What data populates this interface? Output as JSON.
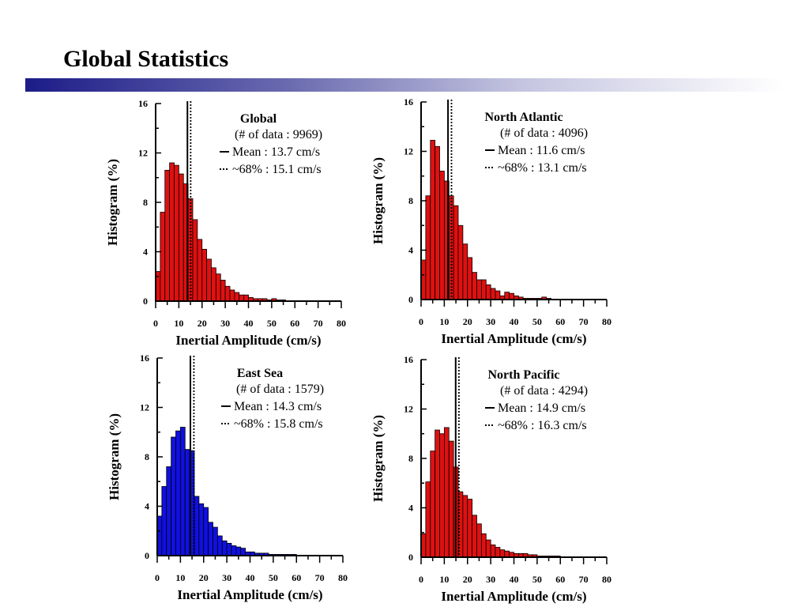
{
  "title": "Global Statistics",
  "colors": {
    "red": "#e01010",
    "blue": "#1010e0"
  },
  "chart_data": [
    {
      "type": "bar",
      "title": "Global",
      "n_data_label": "(# of data : 9969)",
      "mean_label": "Mean : 13.7 cm/s",
      "pct_label": "~68% : 15.1 cm/s",
      "mean": 13.7,
      "pct68": 15.1,
      "bar_color": "red",
      "xlabel": "Inertial Amplitude (cm/s)",
      "ylabel": "Histogram (%)",
      "xlim": [
        0,
        80
      ],
      "ylim": [
        0,
        16
      ],
      "xticks": [
        0,
        10,
        20,
        30,
        40,
        50,
        60,
        70,
        80
      ],
      "yticks": [
        0,
        4,
        8,
        12,
        16
      ],
      "bin_width": 2,
      "values": [
        2.4,
        7.2,
        10.6,
        11.2,
        11.0,
        10.3,
        9.5,
        8.3,
        6.6,
        5.0,
        4.2,
        3.4,
        2.7,
        2.2,
        1.7,
        1.2,
        0.9,
        0.7,
        0.5,
        0.5,
        0.3,
        0.2,
        0.2,
        0.2,
        0.1,
        0.2,
        0.1,
        0.1,
        0.0,
        0.0,
        0.0,
        0.0,
        0.0,
        0.0,
        0.0,
        0.0,
        0.0,
        0.0,
        0.0,
        0.0
      ]
    },
    {
      "type": "bar",
      "title": "North Atlantic",
      "n_data_label": "(# of data : 4096)",
      "mean_label": "Mean : 11.6 cm/s",
      "pct_label": "~68% : 13.1 cm/s",
      "mean": 11.6,
      "pct68": 13.1,
      "bar_color": "red",
      "xlabel": "Inertial Amplitude (cm/s)",
      "ylabel": "Histogram (%)",
      "xlim": [
        0,
        80
      ],
      "ylim": [
        0,
        16
      ],
      "xticks": [
        0,
        10,
        20,
        30,
        40,
        50,
        60,
        70,
        80
      ],
      "yticks": [
        0,
        4,
        8,
        12,
        16
      ],
      "bin_width": 2,
      "values": [
        3.2,
        8.4,
        12.9,
        12.4,
        10.4,
        9.6,
        8.4,
        7.6,
        6.0,
        4.5,
        3.4,
        2.2,
        1.6,
        1.6,
        1.2,
        0.9,
        0.7,
        0.3,
        0.6,
        0.5,
        0.3,
        0.2,
        0.1,
        0.1,
        0.1,
        0.1,
        0.2,
        0.1,
        0.0,
        0.0,
        0.0,
        0.0,
        0.0,
        0.0,
        0.0,
        0.0,
        0.0,
        0.0,
        0.0,
        0.0
      ]
    },
    {
      "type": "bar",
      "title": "East Sea",
      "n_data_label": "(# of data : 1579)",
      "mean_label": "Mean : 14.3 cm/s",
      "pct_label": "~68% : 15.8 cm/s",
      "mean": 14.3,
      "pct68": 15.8,
      "bar_color": "blue",
      "xlabel": "Inertial Amplitude (cm/s)",
      "ylabel": "Histogram (%)",
      "xlim": [
        0,
        80
      ],
      "ylim": [
        0,
        16
      ],
      "xticks": [
        0,
        10,
        20,
        30,
        40,
        50,
        60,
        70,
        80
      ],
      "yticks": [
        0,
        4,
        8,
        12,
        16
      ],
      "bin_width": 2,
      "values": [
        3.2,
        5.6,
        7.2,
        9.6,
        10.1,
        10.4,
        8.6,
        8.5,
        4.8,
        4.2,
        3.9,
        2.7,
        2.3,
        1.6,
        1.2,
        1.0,
        0.8,
        0.7,
        0.6,
        0.3,
        0.3,
        0.2,
        0.2,
        0.2,
        0.1,
        0.1,
        0.1,
        0.1,
        0.1,
        0.1,
        0.0,
        0.0,
        0.0,
        0.0,
        0.0,
        0.0,
        0.0,
        0.0,
        0.0,
        0.0
      ]
    },
    {
      "type": "bar",
      "title": "North Pacific",
      "n_data_label": "(# of data  : 4294)",
      "mean_label": "Mean : 14.9 cm/s",
      "pct_label": "~68% : 16.3 cm/s",
      "mean": 14.9,
      "pct68": 16.3,
      "bar_color": "red",
      "xlabel": "Inertial Amplitude (cm/s)",
      "ylabel": "Histogram (%)",
      "xlim": [
        0,
        80
      ],
      "ylim": [
        0,
        16
      ],
      "xticks": [
        0,
        10,
        20,
        30,
        40,
        50,
        60,
        70,
        80
      ],
      "yticks": [
        0,
        4,
        8,
        12,
        16
      ],
      "bin_width": 2,
      "values": [
        1.9,
        6.1,
        8.6,
        10.3,
        10.0,
        10.5,
        9.4,
        7.3,
        5.3,
        5.0,
        4.7,
        3.4,
        2.7,
        1.9,
        1.4,
        1.0,
        0.8,
        0.6,
        0.5,
        0.4,
        0.3,
        0.3,
        0.3,
        0.2,
        0.2,
        0.1,
        0.1,
        0.1,
        0.1,
        0.1,
        0.0,
        0.0,
        0.0,
        0.0,
        0.0,
        0.0,
        0.0,
        0.0,
        0.0,
        0.0
      ]
    }
  ]
}
